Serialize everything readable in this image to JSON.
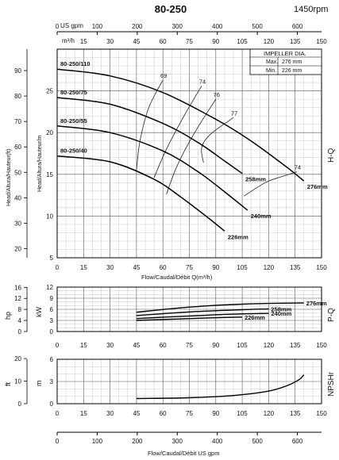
{
  "title": "80-250",
  "speed": "1450rpm",
  "axes": {
    "top_unit_usgpm": "US gpm",
    "top_unit_m3h": "m³/h",
    "flow_xlabel": "Flow/Caudal/Débit Q(m³/h)",
    "bottom_xlabel": "Flow/Caudal/Débit  US gpm",
    "hq_ylabel_ft": "Head/Altura/Hauteur(ft)",
    "hq_ylabel_m": "Head/Altura/Hauteur/m",
    "pq_ylabel_hp": "hp",
    "pq_ylabel_kw": "kW",
    "npsh_ylabel_ft": "ft",
    "npsh_ylabel_m": "m",
    "hq_side": "H-Q",
    "pq_side": "P-Q",
    "npsh_side": "NPSHr"
  },
  "impeller_box": {
    "title": "IMPELLER DIA.",
    "max_label": "Max.",
    "max_value": "276 mm",
    "min_label": "Min.",
    "min_value": "226 mm"
  },
  "chart_data": [
    {
      "type": "line",
      "name": "H-Q",
      "x_unit": "m³/h",
      "xlim": [
        0,
        150
      ],
      "ylim": [
        5,
        30
      ],
      "y_ticks_m": [
        5,
        10,
        15,
        20,
        25
      ],
      "y_ticks_ft": [
        20,
        30,
        40,
        50,
        60,
        70,
        80,
        90
      ],
      "x_ticks_m3h": [
        0,
        15,
        30,
        45,
        60,
        75,
        90,
        105,
        120,
        135,
        150
      ],
      "x_ticks_usgpm": [
        0,
        100,
        200,
        300,
        400,
        500,
        600
      ],
      "grid": true,
      "series": [
        {
          "name": "276mm",
          "x": [
            0,
            30,
            60,
            90,
            110,
            130,
            140
          ],
          "y": [
            27.6,
            26.8,
            24.8,
            21.6,
            19.0,
            15.9,
            14.2
          ]
        },
        {
          "name": "258mm",
          "x": [
            0,
            30,
            60,
            80,
            95,
            105
          ],
          "y": [
            24.2,
            23.4,
            21.1,
            18.8,
            16.6,
            15.1
          ]
        },
        {
          "name": "240mm",
          "x": [
            0,
            30,
            60,
            80,
            95,
            108
          ],
          "y": [
            20.8,
            20.0,
            17.8,
            15.3,
            12.9,
            10.7
          ]
        },
        {
          "name": "226mm",
          "x": [
            0,
            30,
            55,
            70,
            85,
            95
          ],
          "y": [
            17.2,
            16.5,
            14.4,
            12.3,
            9.9,
            8.2
          ]
        }
      ],
      "curve_labels": [
        "80-250/110",
        "80-250/75",
        "80-250/55",
        "80-250/40"
      ],
      "efficiency_contours": [
        {
          "label": "69",
          "x": [
            45,
            47,
            52,
            60
          ],
          "y": [
            15.5,
            19,
            23,
            26.3
          ]
        },
        {
          "label": "74",
          "x": [
            55,
            62,
            72,
            82
          ],
          "y": [
            14.6,
            18,
            22,
            25.6
          ]
        },
        {
          "label": "76",
          "x": [
            62,
            68,
            78,
            90
          ],
          "y": [
            12.6,
            16,
            20,
            24.0
          ]
        },
        {
          "label": "77",
          "x": [
            83,
            82,
            87,
            100
          ],
          "y": [
            16.4,
            18.2,
            19.8,
            21.8
          ]
        },
        {
          "label": "74",
          "x": [
            106,
            118,
            127,
            136
          ],
          "y": [
            12.4,
            14.0,
            14.7,
            15.3
          ]
        }
      ]
    },
    {
      "type": "line",
      "name": "P-Q",
      "x_unit": "m³/h",
      "xlim": [
        0,
        150
      ],
      "ylim": [
        0,
        12
      ],
      "y_ticks_kw": [
        0,
        3,
        6,
        9,
        12
      ],
      "y_ticks_hp": [
        0,
        4,
        8,
        12,
        16
      ],
      "series": [
        {
          "name": "276mm",
          "x": [
            45,
            75,
            105,
            135,
            140
          ],
          "y": [
            5.2,
            6.6,
            7.4,
            7.7,
            7.7
          ]
        },
        {
          "name": "258mm",
          "x": [
            45,
            75,
            105,
            120
          ],
          "y": [
            4.3,
            5.3,
            5.9,
            6.1
          ]
        },
        {
          "name": "240mm",
          "x": [
            45,
            75,
            100,
            120
          ],
          "y": [
            3.5,
            4.2,
            4.7,
            4.9
          ]
        },
        {
          "name": "226mm",
          "x": [
            45,
            75,
            95,
            105
          ],
          "y": [
            3.0,
            3.5,
            3.8,
            3.9
          ]
        }
      ]
    },
    {
      "type": "line",
      "name": "NPSHr",
      "x_unit": "m³/h",
      "xlim": [
        0,
        150
      ],
      "ylim": [
        0,
        6
      ],
      "y_ticks_m": [
        0,
        3,
        6
      ],
      "y_ticks_ft": [
        0,
        10,
        20
      ],
      "series": [
        {
          "name": "NPSHr",
          "x": [
            45,
            75,
            100,
            120,
            130,
            137,
            140
          ],
          "y": [
            0.7,
            0.8,
            1.1,
            1.7,
            2.4,
            3.2,
            3.9
          ]
        }
      ]
    }
  ]
}
